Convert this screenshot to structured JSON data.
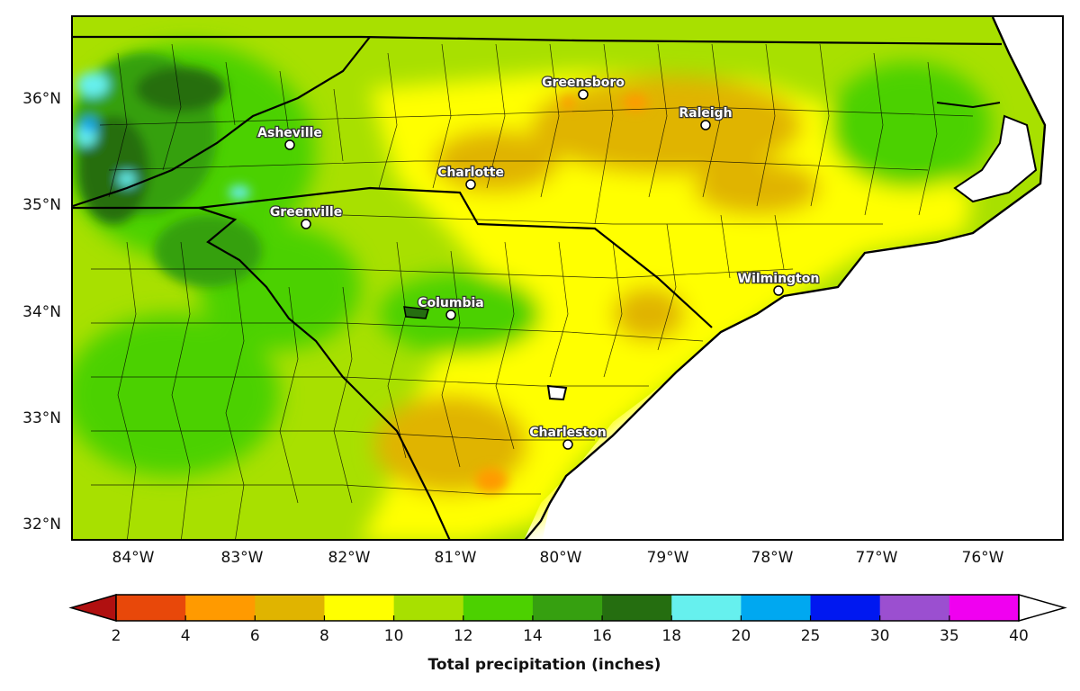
{
  "map": {
    "variable_title": "Total precipitation (inches)",
    "lat_labels": [
      "36°N",
      "35°N",
      "34°N",
      "33°N",
      "32°N"
    ],
    "lon_labels": [
      "84°W",
      "83°W",
      "82°W",
      "81°W",
      "80°W",
      "79°W",
      "78°W",
      "77°W",
      "76°W"
    ],
    "cities": [
      {
        "name": "Greensboro"
      },
      {
        "name": "Raleigh"
      },
      {
        "name": "Asheville"
      },
      {
        "name": "Charlotte"
      },
      {
        "name": "Greenville"
      },
      {
        "name": "Columbia"
      },
      {
        "name": "Wilmington"
      },
      {
        "name": "Charleston"
      }
    ]
  },
  "colorbar": {
    "tick_labels": [
      "2",
      "4",
      "6",
      "8",
      "10",
      "12",
      "14",
      "16",
      "18",
      "20",
      "25",
      "30",
      "35",
      "40"
    ],
    "colors": [
      "#e8480a",
      "#ff9a00",
      "#e0b400",
      "#ffff00",
      "#a8e000",
      "#4cd100",
      "#36a010",
      "#256e10",
      "#66f0ee",
      "#00a8f0",
      "#0018f0",
      "#9b4fd0",
      "#f000f0"
    ],
    "under_color": "#b01010",
    "over_color": "#ffffff"
  }
}
